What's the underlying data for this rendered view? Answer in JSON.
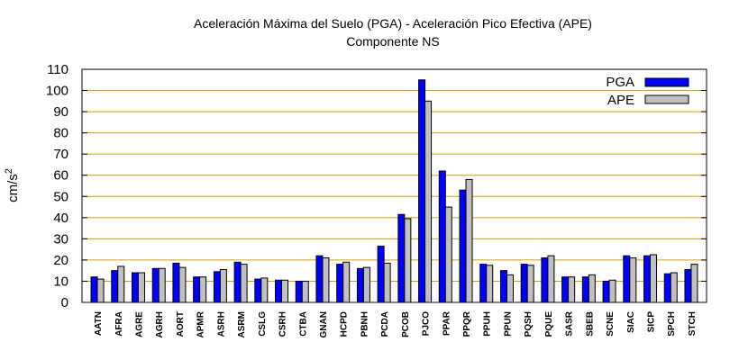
{
  "chart_data": {
    "type": "bar",
    "title": "Aceleración Máxima del Suelo (PGA) -  Aceleración Pico Efectiva (APE)",
    "subtitle": "Componente NS",
    "ylabel_base": "cm/s",
    "ylabel_exp": "2",
    "xlabel": "",
    "ylim": [
      0,
      110
    ],
    "yticks": [
      0,
      10,
      20,
      30,
      40,
      50,
      60,
      70,
      80,
      90,
      100,
      110
    ],
    "grid": true,
    "legend_position": "top-right",
    "categories": [
      "AATN",
      "AFRA",
      "AGRE",
      "AGRH",
      "AORT",
      "APMR",
      "ASRH",
      "ASRM",
      "CSLG",
      "CSRH",
      "CTBA",
      "GNAN",
      "HCPD",
      "PBNH",
      "PCDA",
      "PCOB",
      "PJCO",
      "PPAR",
      "PPQR",
      "PPUH",
      "PPUN",
      "PQSH",
      "PQUE",
      "SASR",
      "SBEB",
      "SCNE",
      "SIAC",
      "SICP",
      "SPCH",
      "STCH"
    ],
    "series": [
      {
        "name": "PGA",
        "color": "#0000ff",
        "values": [
          12,
          15,
          14,
          16,
          18.5,
          12,
          14.5,
          19,
          11,
          10.5,
          10,
          22,
          18,
          16,
          26.5,
          41.5,
          105,
          62,
          53,
          18,
          15,
          18,
          21,
          12,
          12,
          10,
          22,
          22,
          13.5,
          15.5
        ]
      },
      {
        "name": "APE",
        "color": "#c0c0c0",
        "values": [
          11,
          17,
          14,
          16,
          16.5,
          12,
          15.5,
          18,
          11.5,
          10.5,
          10,
          21,
          19,
          16.5,
          18.5,
          39.5,
          95,
          45,
          58,
          17.5,
          13,
          17.5,
          22,
          12,
          13,
          10.5,
          21,
          22.5,
          14,
          18
        ]
      }
    ]
  }
}
